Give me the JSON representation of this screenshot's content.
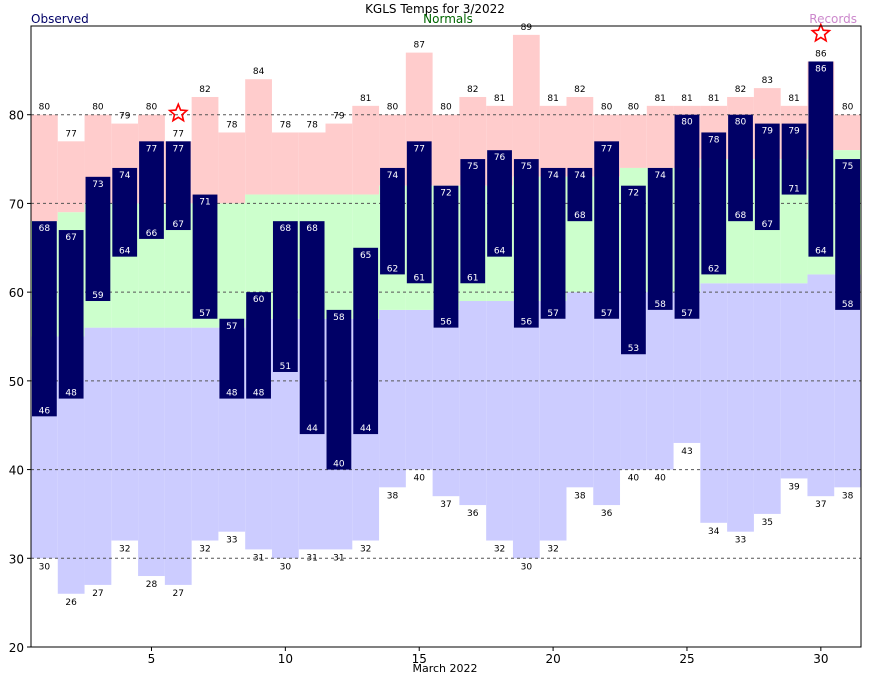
{
  "chart_data": {
    "type": "bar",
    "title": "KGLS Temps for  3/2022",
    "legend": {
      "observed": "Observed",
      "normals": "Normals",
      "records": "Records"
    },
    "xlabel": "March 2022",
    "ylabel": "",
    "ylim": [
      20,
      90
    ],
    "xlim": [
      0.5,
      31.5
    ],
    "yticks": [
      20,
      30,
      40,
      50,
      60,
      70,
      80
    ],
    "xticks": [
      5,
      10,
      15,
      20,
      25,
      30
    ],
    "grid": "dashed horizontal at 30,40,50,60,70,80",
    "days": [
      1,
      2,
      3,
      4,
      5,
      6,
      7,
      8,
      9,
      10,
      11,
      12,
      13,
      14,
      15,
      16,
      17,
      18,
      19,
      20,
      21,
      22,
      23,
      24,
      25,
      26,
      27,
      28,
      29,
      30,
      31
    ],
    "observed_high": [
      68,
      67,
      73,
      74,
      77,
      77,
      71,
      57,
      60,
      68,
      68,
      58,
      65,
      74,
      77,
      72,
      75,
      76,
      75,
      74,
      74,
      77,
      72,
      74,
      80,
      78,
      80,
      79,
      79,
      86,
      75
    ],
    "observed_low": [
      46,
      48,
      59,
      64,
      66,
      67,
      57,
      48,
      48,
      51,
      44,
      40,
      44,
      62,
      61,
      56,
      61,
      64,
      56,
      57,
      68,
      57,
      53,
      58,
      57,
      62,
      68,
      67,
      71,
      64,
      58
    ],
    "normal_high": [
      68,
      69,
      70,
      70,
      70,
      70,
      70,
      70,
      71,
      71,
      71,
      71,
      71,
      72,
      72,
      72,
      72,
      72,
      73,
      73,
      73,
      73,
      74,
      74,
      74,
      75,
      75,
      75,
      75,
      76,
      76
    ],
    "normal_low": [
      55,
      55,
      56,
      56,
      56,
      56,
      56,
      56,
      57,
      57,
      57,
      57,
      57,
      58,
      58,
      58,
      59,
      59,
      59,
      59,
      60,
      60,
      60,
      60,
      60,
      61,
      61,
      61,
      61,
      62,
      62
    ],
    "record_high": [
      80,
      77,
      80,
      79,
      80,
      77,
      82,
      78,
      84,
      78,
      78,
      79,
      81,
      80,
      87,
      80,
      82,
      81,
      89,
      81,
      82,
      80,
      80,
      81,
      81,
      81,
      82,
      83,
      81,
      86,
      80
    ],
    "record_low": [
      30,
      26,
      27,
      32,
      28,
      27,
      32,
      33,
      31,
      30,
      31,
      31,
      32,
      38,
      40,
      37,
      36,
      32,
      30,
      32,
      38,
      36,
      40,
      40,
      43,
      34,
      33,
      35,
      39,
      37,
      38
    ],
    "record_high_marker_days": [
      6,
      30
    ],
    "colors": {
      "observed": "#000066",
      "normal": "#ccffcc",
      "record": "#ffcccc",
      "record_low_fill": "#ccccff",
      "record_label": "#cc88cc",
      "normals_label": "#006600",
      "observed_label": "#000066",
      "star": "#ff0000",
      "grid": "#555555"
    }
  }
}
